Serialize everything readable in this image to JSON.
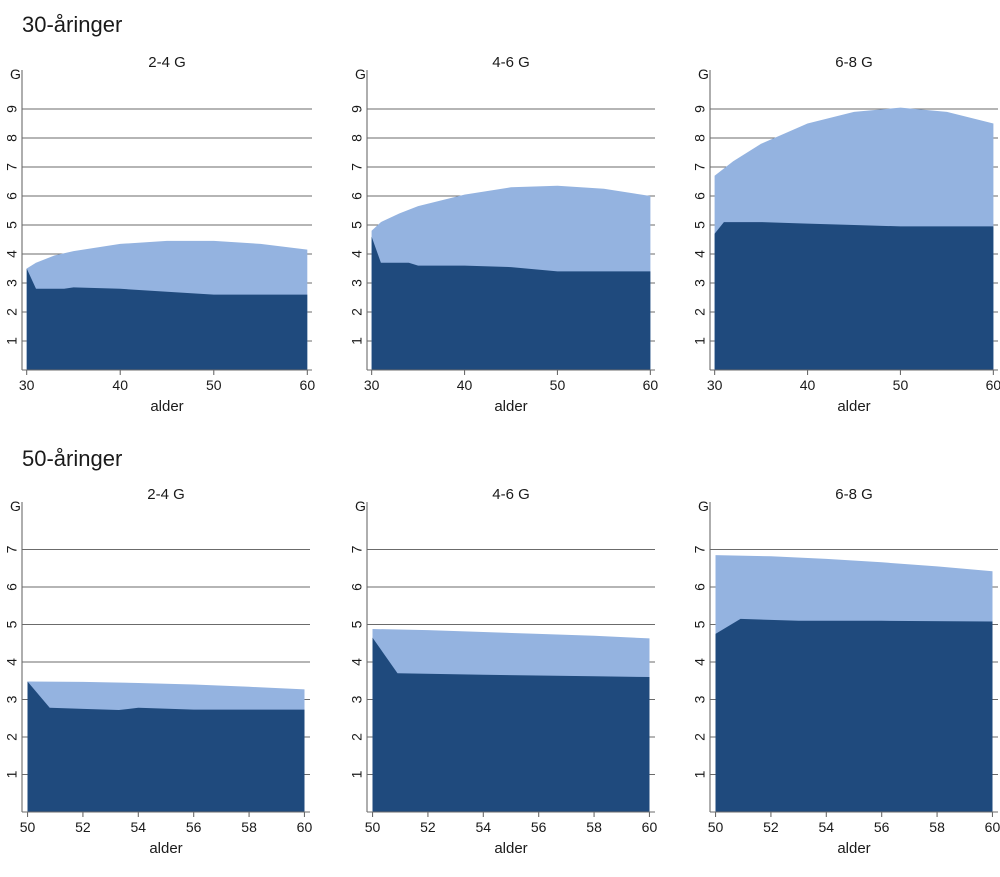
{
  "sections": [
    {
      "title": "30-åringer"
    },
    {
      "title": "50-åringer"
    }
  ],
  "colors": {
    "light": "#94b3e0",
    "dark": "#1f4a7d",
    "grid": "#6b6b6b",
    "text": "#1a1a1a"
  },
  "chart_data": [
    {
      "type": "area",
      "section": 0,
      "title": "2-4 G",
      "xlabel": "alder",
      "ylabel": "G",
      "xlim": [
        29.5,
        60.5
      ],
      "ylim": [
        0,
        10
      ],
      "xticks": [
        30,
        40,
        50,
        60
      ],
      "yticks": [
        1,
        2,
        3,
        4,
        5,
        6,
        7,
        8,
        9
      ],
      "series": [
        {
          "name": "upper",
          "color": "#94b3e0",
          "x": [
            30,
            31,
            33,
            35,
            40,
            45,
            50,
            55,
            60
          ],
          "values": [
            3.5,
            3.7,
            3.95,
            4.1,
            4.35,
            4.45,
            4.45,
            4.35,
            4.15
          ]
        },
        {
          "name": "lower",
          "color": "#1f4a7d",
          "x": [
            30,
            31,
            34,
            35,
            40,
            45,
            50,
            55,
            60
          ],
          "values": [
            3.5,
            2.8,
            2.8,
            2.85,
            2.8,
            2.7,
            2.6,
            2.6,
            2.6
          ]
        }
      ]
    },
    {
      "type": "area",
      "section": 0,
      "title": "4-6 G",
      "xlabel": "alder",
      "ylabel": "G",
      "xlim": [
        29.5,
        60.5
      ],
      "ylim": [
        0,
        10
      ],
      "xticks": [
        30,
        40,
        50,
        60
      ],
      "yticks": [
        1,
        2,
        3,
        4,
        5,
        6,
        7,
        8,
        9
      ],
      "series": [
        {
          "name": "upper",
          "color": "#94b3e0",
          "x": [
            30,
            31,
            33,
            35,
            40,
            45,
            50,
            55,
            60
          ],
          "values": [
            4.8,
            5.1,
            5.4,
            5.65,
            6.05,
            6.3,
            6.35,
            6.25,
            6.0
          ]
        },
        {
          "name": "lower",
          "color": "#1f4a7d",
          "x": [
            30,
            31,
            34,
            35,
            40,
            45,
            50,
            55,
            60
          ],
          "values": [
            4.6,
            3.7,
            3.7,
            3.6,
            3.6,
            3.55,
            3.4,
            3.4,
            3.4
          ]
        }
      ]
    },
    {
      "type": "area",
      "section": 0,
      "title": "6-8 G",
      "xlabel": "alder",
      "ylabel": "G",
      "xlim": [
        29.5,
        60.5
      ],
      "ylim": [
        0,
        10
      ],
      "xticks": [
        30,
        40,
        50,
        60
      ],
      "yticks": [
        1,
        2,
        3,
        4,
        5,
        6,
        7,
        8,
        9
      ],
      "series": [
        {
          "name": "upper",
          "color": "#94b3e0",
          "x": [
            30,
            32,
            35,
            40,
            45,
            50,
            55,
            60
          ],
          "values": [
            6.7,
            7.2,
            7.8,
            8.5,
            8.9,
            9.05,
            8.9,
            8.5
          ]
        },
        {
          "name": "lower",
          "color": "#1f4a7d",
          "x": [
            30,
            31,
            35,
            40,
            45,
            50,
            55,
            60
          ],
          "values": [
            4.7,
            5.1,
            5.1,
            5.05,
            5.0,
            4.95,
            4.95,
            4.95
          ]
        }
      ]
    },
    {
      "type": "area",
      "section": 1,
      "title": "2-4 G",
      "xlabel": "alder",
      "ylabel": "G",
      "xlim": [
        49.8,
        60.2
      ],
      "ylim": [
        0,
        8
      ],
      "xticks": [
        50,
        52,
        54,
        56,
        58,
        60
      ],
      "yticks": [
        1,
        2,
        3,
        4,
        5,
        6,
        7
      ],
      "series": [
        {
          "name": "upper",
          "color": "#94b3e0",
          "x": [
            50,
            52,
            54,
            56,
            58,
            60
          ],
          "values": [
            3.48,
            3.47,
            3.44,
            3.4,
            3.34,
            3.27
          ]
        },
        {
          "name": "lower",
          "color": "#1f4a7d",
          "x": [
            50,
            50.8,
            52,
            53.3,
            54,
            56,
            58,
            60
          ],
          "values": [
            3.48,
            2.78,
            2.75,
            2.72,
            2.78,
            2.73,
            2.73,
            2.73
          ]
        }
      ]
    },
    {
      "type": "area",
      "section": 1,
      "title": "4-6 G",
      "xlabel": "alder",
      "ylabel": "G",
      "xlim": [
        49.8,
        60.2
      ],
      "ylim": [
        0,
        8
      ],
      "xticks": [
        50,
        52,
        54,
        56,
        58,
        60
      ],
      "yticks": [
        1,
        2,
        3,
        4,
        5,
        6,
        7
      ],
      "series": [
        {
          "name": "upper",
          "color": "#94b3e0",
          "x": [
            50,
            52,
            54,
            56,
            58,
            60
          ],
          "values": [
            4.88,
            4.85,
            4.8,
            4.75,
            4.7,
            4.63
          ]
        },
        {
          "name": "lower",
          "color": "#1f4a7d",
          "x": [
            50,
            50.9,
            54,
            58,
            60
          ],
          "values": [
            4.65,
            3.7,
            3.66,
            3.62,
            3.6
          ]
        }
      ]
    },
    {
      "type": "area",
      "section": 1,
      "title": "6-8 G",
      "xlabel": "alder",
      "ylabel": "G",
      "xlim": [
        49.8,
        60.2
      ],
      "ylim": [
        0,
        8
      ],
      "xticks": [
        50,
        52,
        54,
        56,
        58,
        60
      ],
      "yticks": [
        1,
        2,
        3,
        4,
        5,
        6,
        7
      ],
      "series": [
        {
          "name": "upper",
          "color": "#94b3e0",
          "x": [
            50,
            52,
            54,
            56,
            58,
            60
          ],
          "values": [
            6.85,
            6.82,
            6.75,
            6.66,
            6.55,
            6.42
          ]
        },
        {
          "name": "lower",
          "color": "#1f4a7d",
          "x": [
            50,
            50.9,
            53,
            56,
            60
          ],
          "values": [
            4.75,
            5.15,
            5.1,
            5.1,
            5.08
          ]
        }
      ]
    }
  ]
}
